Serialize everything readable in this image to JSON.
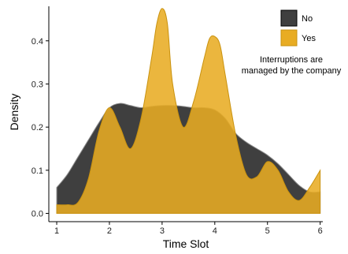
{
  "chart_data": {
    "type": "area",
    "subtype": "density",
    "xlabel": "Time Slot",
    "ylabel": "Density",
    "xlim": [
      0.85,
      6.05
    ],
    "ylim": [
      -0.01,
      0.48
    ],
    "x_ticks": [
      1,
      2,
      3,
      4,
      5,
      6
    ],
    "y_ticks": [
      0.0,
      0.1,
      0.2,
      0.3,
      0.4
    ],
    "y_tick_labels": [
      "0.0",
      "0.1",
      "0.2",
      "0.3",
      "0.4"
    ],
    "grid": false,
    "legend_position": "top-right",
    "legend_entries": [
      "No",
      "Yes"
    ],
    "annotation": [
      "Interruptions are",
      "managed by the company"
    ],
    "colors": {
      "No": "#3f3f3f",
      "Yes": "#e8ac23",
      "No_outline": "#8a8a8a",
      "Yes_outline": "#c9920f",
      "axis": "#000000"
    },
    "series": [
      {
        "name": "No",
        "x": [
          1.0,
          1.2,
          1.4,
          1.6,
          1.8,
          2.0,
          2.2,
          2.4,
          2.6,
          2.8,
          3.0,
          3.2,
          3.4,
          3.6,
          3.8,
          4.0,
          4.2,
          4.4,
          4.6,
          4.8,
          5.0,
          5.2,
          5.4,
          5.6,
          5.8,
          6.0
        ],
        "y": [
          0.06,
          0.09,
          0.13,
          0.17,
          0.21,
          0.245,
          0.255,
          0.25,
          0.245,
          0.248,
          0.25,
          0.25,
          0.248,
          0.245,
          0.245,
          0.24,
          0.22,
          0.185,
          0.165,
          0.15,
          0.135,
          0.115,
          0.09,
          0.065,
          0.05,
          0.05
        ]
      },
      {
        "name": "Yes",
        "x": [
          1.0,
          1.2,
          1.4,
          1.6,
          1.8,
          2.0,
          2.2,
          2.4,
          2.6,
          2.8,
          2.9,
          3.0,
          3.1,
          3.2,
          3.4,
          3.6,
          3.8,
          3.9,
          4.0,
          4.1,
          4.2,
          4.4,
          4.6,
          4.8,
          5.0,
          5.2,
          5.4,
          5.6,
          5.8,
          6.0
        ],
        "y": [
          0.02,
          0.02,
          0.025,
          0.08,
          0.19,
          0.245,
          0.2,
          0.15,
          0.22,
          0.36,
          0.44,
          0.475,
          0.44,
          0.3,
          0.2,
          0.26,
          0.36,
          0.405,
          0.41,
          0.39,
          0.32,
          0.18,
          0.09,
          0.085,
          0.12,
          0.1,
          0.05,
          0.03,
          0.06,
          0.1
        ]
      }
    ]
  }
}
